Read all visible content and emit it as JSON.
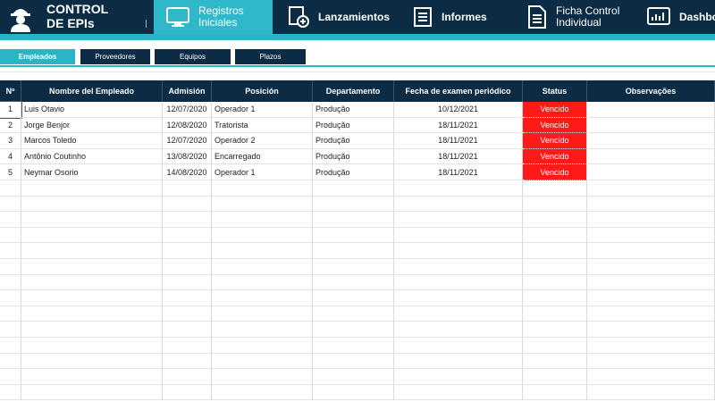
{
  "header": {
    "title_line1": "CONTROL",
    "title_line2": "DE EPIs"
  },
  "nav": [
    {
      "label": "Registros Iniciales"
    },
    {
      "label": "Lanzamientos"
    },
    {
      "label": "Informes"
    },
    {
      "label": "Ficha Control Individual"
    },
    {
      "label": "Dashboard"
    }
  ],
  "tabs": [
    "Empleados",
    "Proveedores",
    "Equipos",
    "Plazos"
  ],
  "table": {
    "columns": [
      "Nº",
      "Nombre del Empleado",
      "Admisión",
      "Posición",
      "Departamento",
      "Fecha de examen periódico",
      "Status",
      "Observações"
    ],
    "rows": [
      [
        "1",
        "Luis Otavio",
        "12/07/2020",
        "Operador 1",
        "Produção",
        "10/12/2021",
        "Vencido"
      ],
      [
        "2",
        "Jorge Benjor",
        "12/08/2020",
        "Tratorista",
        "Produção",
        "18/11/2021",
        "Vencido"
      ],
      [
        "3",
        "Marcos Toledo",
        "12/07/2020",
        "Operador 2",
        "Produção",
        "18/11/2021",
        "Vencido"
      ],
      [
        "4",
        "Antônio Coutinho",
        "13/08/2020",
        "Encarregado",
        "Produção",
        "18/11/2021",
        "Vencido"
      ],
      [
        "5",
        "Neymar Osorio",
        "14/08/2020",
        "Operador 1",
        "Produção",
        "18/11/2021",
        "Vencido"
      ]
    ]
  }
}
